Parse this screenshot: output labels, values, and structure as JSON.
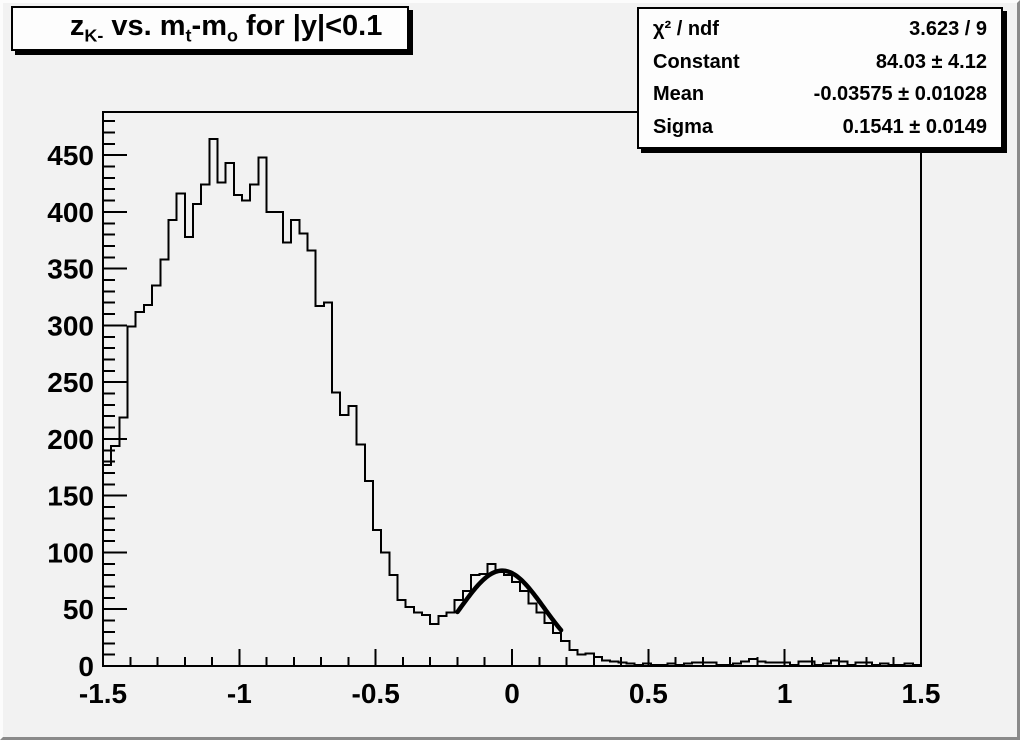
{
  "window": {
    "name": "root-histogram-canvas"
  },
  "title": {
    "t1": "z",
    "s1": "K-",
    "t2": " vs. m",
    "s2": "t",
    "t3": "-m",
    "s3": "o",
    "t4": " for |y|<0.1"
  },
  "stats": {
    "rows": [
      {
        "label": "χ² / ndf",
        "value": "3.623 / 9"
      },
      {
        "label": "Constant",
        "value": "84.03 ± 4.12"
      },
      {
        "label": "Mean",
        "value": "-0.03575 ± 0.01028"
      },
      {
        "label": "Sigma",
        "value": "0.1541 ± 0.0149"
      }
    ]
  },
  "chart_data": {
    "type": "bar",
    "subtype": "root-histogram-with-gaussian-fit",
    "title": "z_{K-} vs. m_{t}-m_{o} for |y|<0.1",
    "xlabel": "",
    "ylabel": "",
    "xlim": [
      -1.5,
      1.5
    ],
    "ylim": [
      0,
      488
    ],
    "x_start": -1.5,
    "bin_width": 0.03,
    "values": [
      177,
      194,
      219,
      299,
      312,
      318,
      335,
      358,
      393,
      416,
      378,
      407,
      424,
      464,
      426,
      443,
      415,
      410,
      424,
      448,
      400,
      400,
      373,
      393,
      381,
      366,
      317,
      320,
      241,
      221,
      229,
      195,
      163,
      120,
      100,
      80,
      58,
      52,
      47,
      45,
      37,
      44,
      47,
      58,
      66,
      80,
      81,
      90,
      83,
      80,
      74,
      66,
      55,
      47,
      38,
      29,
      22,
      14,
      10,
      11,
      8,
      5,
      4,
      3,
      2,
      1,
      2,
      1,
      1,
      2,
      1,
      2,
      3,
      3,
      3,
      1,
      1,
      2,
      4,
      6,
      4,
      3,
      3,
      3,
      1,
      4,
      4,
      1,
      2,
      5,
      4,
      1,
      3,
      3,
      1,
      2,
      1,
      1,
      2,
      1
    ],
    "x_major_ticks": [
      -1.5,
      -1,
      -0.5,
      0,
      0.5,
      1,
      1.5
    ],
    "x_major_labels": [
      "-1.5",
      "-1",
      "-0.5",
      "0",
      "0.5",
      "1",
      "1.5"
    ],
    "x_minor_step": 0.1,
    "y_major_ticks": [
      0,
      50,
      100,
      150,
      200,
      250,
      300,
      350,
      400,
      450
    ],
    "y_major_labels": [
      "0",
      "50",
      "100",
      "150",
      "200",
      "250",
      "300",
      "350",
      "400",
      "450"
    ],
    "y_minor_step": 10,
    "grid": false,
    "legend": false,
    "fit": {
      "type": "gaussian",
      "constant": 84.03,
      "mean": -0.03575,
      "sigma": 0.1541,
      "range": [
        -0.2,
        0.18
      ]
    },
    "colors": {
      "line": "#000000",
      "fit_line": "#000000",
      "background": "#f2f2f2",
      "box_fill": "#fdfdfd",
      "text": "#000000"
    }
  }
}
